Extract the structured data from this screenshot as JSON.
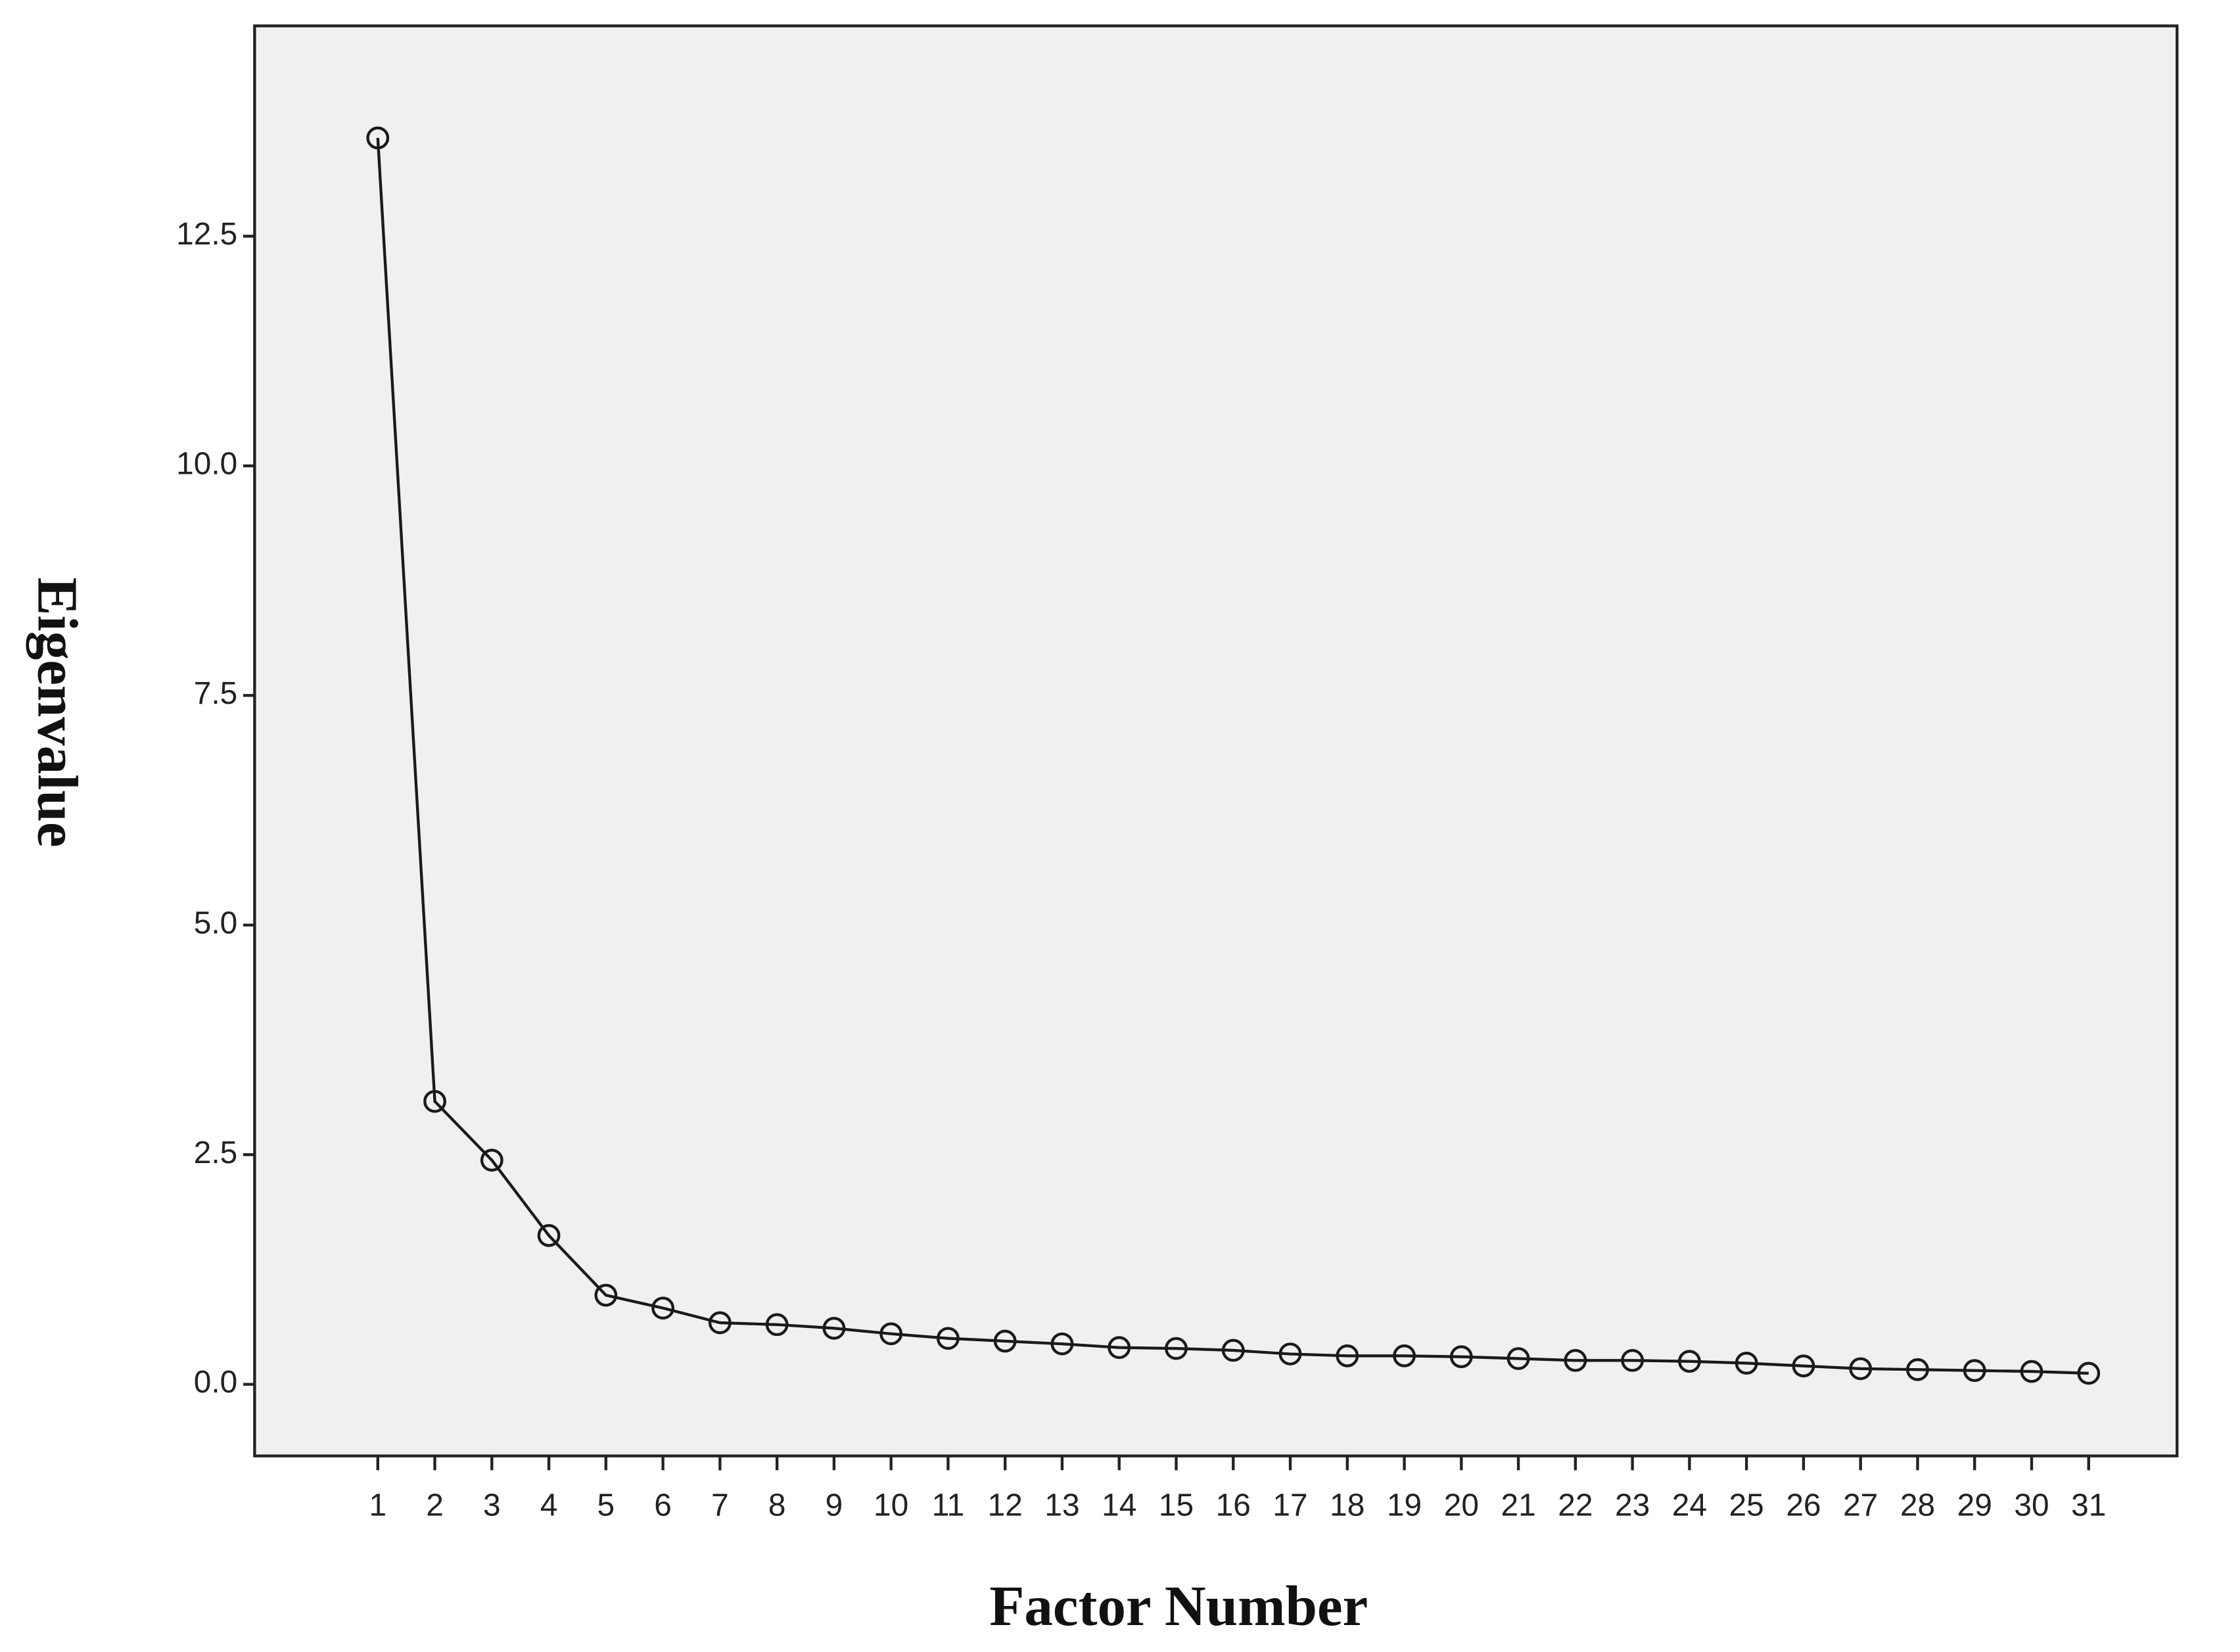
{
  "chart_data": {
    "type": "line",
    "x_label": "Factor Number",
    "y_label": "Eigenvalue",
    "x": [
      1,
      2,
      3,
      4,
      5,
      6,
      7,
      8,
      9,
      10,
      11,
      12,
      13,
      14,
      15,
      16,
      17,
      18,
      19,
      20,
      21,
      22,
      23,
      24,
      25,
      26,
      27,
      28,
      29,
      30,
      31
    ],
    "values": [
      13.57,
      3.08,
      2.44,
      1.62,
      0.97,
      0.83,
      0.67,
      0.65,
      0.61,
      0.55,
      0.5,
      0.47,
      0.44,
      0.4,
      0.39,
      0.37,
      0.33,
      0.31,
      0.31,
      0.3,
      0.28,
      0.26,
      0.26,
      0.25,
      0.23,
      0.2,
      0.17,
      0.16,
      0.15,
      0.14,
      0.12
    ],
    "color": "#1a1a1a",
    "xlim": [
      -1.16,
      32.55
    ],
    "xticks": [
      1,
      2,
      3,
      4,
      5,
      6,
      7,
      8,
      9,
      10,
      11,
      12,
      13,
      14,
      15,
      16,
      17,
      18,
      19,
      20,
      21,
      22,
      23,
      24,
      25,
      26,
      27,
      28,
      29,
      30,
      31
    ],
    "ylim": [
      -0.78,
      14.79
    ],
    "yticks": [
      {
        "value": 0,
        "label": "0.0"
      },
      {
        "value": 2.5,
        "label": "2.5"
      },
      {
        "value": 5,
        "label": "5.0"
      },
      {
        "value": 7.5,
        "label": "7.5"
      },
      {
        "value": 10,
        "label": "10.0"
      },
      {
        "value": 12.5,
        "label": "12.5"
      }
    ],
    "background": "#f0f0f0"
  }
}
